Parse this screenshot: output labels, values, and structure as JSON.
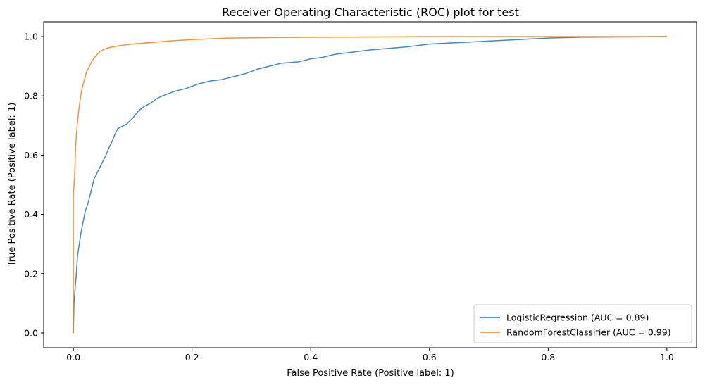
{
  "chart_data": {
    "type": "line",
    "title": "Receiver Operating Characteristic (ROC) plot for test",
    "xlabel": "False Positive Rate (Positive label: 1)",
    "ylabel": "True Positive Rate (Positive label: 1)",
    "xlim": [
      -0.05,
      1.05
    ],
    "ylim": [
      -0.05,
      1.05
    ],
    "xticks": [
      0.0,
      0.2,
      0.4,
      0.6,
      0.8,
      1.0
    ],
    "xtick_labels": [
      "0.0",
      "0.2",
      "0.4",
      "0.6",
      "0.8",
      "1.0"
    ],
    "yticks": [
      0.0,
      0.2,
      0.4,
      0.6,
      0.8,
      1.0
    ],
    "ytick_labels": [
      "0.0",
      "0.2",
      "0.4",
      "0.6",
      "0.8",
      "1.0"
    ],
    "grid": false,
    "legend_position": "lower-right",
    "series": [
      {
        "name": "LogisticRegression (AUC = 0.89)",
        "color": "#1f77b4",
        "x": [
          0.0,
          0.001,
          0.003,
          0.005,
          0.007,
          0.01,
          0.013,
          0.016,
          0.02,
          0.025,
          0.03,
          0.035,
          0.04,
          0.045,
          0.05,
          0.055,
          0.06,
          0.065,
          0.07,
          0.075,
          0.08,
          0.09,
          0.1,
          0.11,
          0.12,
          0.13,
          0.14,
          0.15,
          0.17,
          0.19,
          0.21,
          0.23,
          0.25,
          0.27,
          0.29,
          0.31,
          0.33,
          0.35,
          0.38,
          0.4,
          0.42,
          0.44,
          0.46,
          0.5,
          0.53,
          0.56,
          0.6,
          0.65,
          0.7,
          0.75,
          0.8,
          0.855,
          1.0
        ],
        "y": [
          0.0,
          0.1,
          0.15,
          0.2,
          0.26,
          0.3,
          0.34,
          0.37,
          0.41,
          0.44,
          0.48,
          0.52,
          0.54,
          0.56,
          0.58,
          0.6,
          0.625,
          0.645,
          0.67,
          0.69,
          0.695,
          0.705,
          0.725,
          0.75,
          0.765,
          0.775,
          0.79,
          0.8,
          0.815,
          0.825,
          0.84,
          0.85,
          0.855,
          0.865,
          0.875,
          0.89,
          0.9,
          0.91,
          0.915,
          0.925,
          0.93,
          0.94,
          0.945,
          0.955,
          0.96,
          0.965,
          0.975,
          0.98,
          0.985,
          0.99,
          0.995,
          0.998,
          1.0
        ]
      },
      {
        "name": "RandomForestClassifier (AUC = 0.99)",
        "color": "#ff7f0e",
        "x": [
          0.0,
          0.0,
          0.002,
          0.003,
          0.004,
          0.005,
          0.007,
          0.009,
          0.011,
          0.014,
          0.018,
          0.022,
          0.027,
          0.032,
          0.038,
          0.045,
          0.055,
          0.065,
          0.08,
          0.1,
          0.13,
          0.16,
          0.2,
          0.26,
          0.35,
          0.5,
          0.6,
          0.8,
          1.0
        ],
        "y": [
          0.0,
          0.47,
          0.52,
          0.58,
          0.63,
          0.67,
          0.71,
          0.75,
          0.78,
          0.82,
          0.85,
          0.88,
          0.9,
          0.92,
          0.935,
          0.95,
          0.96,
          0.965,
          0.97,
          0.975,
          0.98,
          0.985,
          0.99,
          0.995,
          0.997,
          0.999,
          1.0,
          1.0,
          1.0
        ]
      }
    ]
  }
}
